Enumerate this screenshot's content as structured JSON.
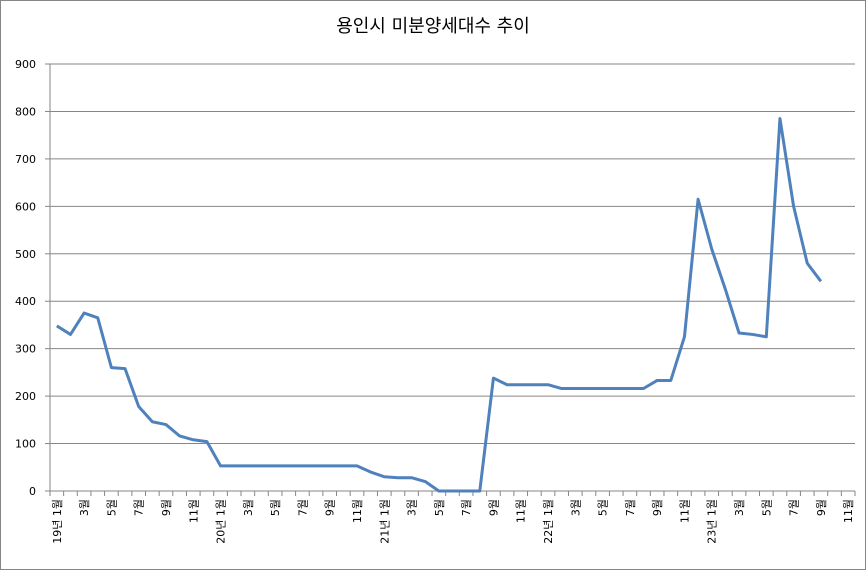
{
  "chart_data": {
    "type": "line",
    "title": "용인시 미분양세대수 추이",
    "categories": [
      "19년 1월",
      null,
      "3월",
      null,
      "5월",
      null,
      "7월",
      null,
      "9월",
      null,
      "11월",
      null,
      "20년 1월",
      null,
      "3월",
      null,
      "5월",
      null,
      "7월",
      null,
      "9월",
      null,
      "11월",
      null,
      "21년 1월",
      null,
      "3월",
      null,
      "5월",
      null,
      "7월",
      null,
      "9월",
      null,
      "11월",
      null,
      "22년 1월",
      null,
      "3월",
      null,
      "5월",
      null,
      "7월",
      null,
      "9월",
      null,
      "11월",
      null,
      "23년 1월",
      null,
      "3월",
      null,
      "5월",
      null,
      "7월",
      null,
      "9월",
      null,
      "11월"
    ],
    "series": [
      {
        "name": "미분양세대수",
        "color": "#4f81bd",
        "values": [
          348,
          330,
          375,
          365,
          260,
          258,
          178,
          146,
          140,
          116,
          108,
          104,
          53,
          53,
          53,
          53,
          53,
          53,
          53,
          53,
          53,
          53,
          53,
          40,
          30,
          28,
          28,
          20,
          0,
          0,
          0,
          0,
          238,
          224,
          224,
          224,
          224,
          216,
          216,
          216,
          216,
          216,
          216,
          216,
          233,
          233,
          325,
          615,
          510,
          425,
          333,
          330,
          325,
          785,
          600,
          480,
          442,
          null,
          null
        ]
      }
    ],
    "ylim": [
      0,
      900
    ],
    "yticks": [
      0,
      100,
      200,
      300,
      400,
      500,
      600,
      700,
      800,
      900
    ],
    "grid": true
  }
}
